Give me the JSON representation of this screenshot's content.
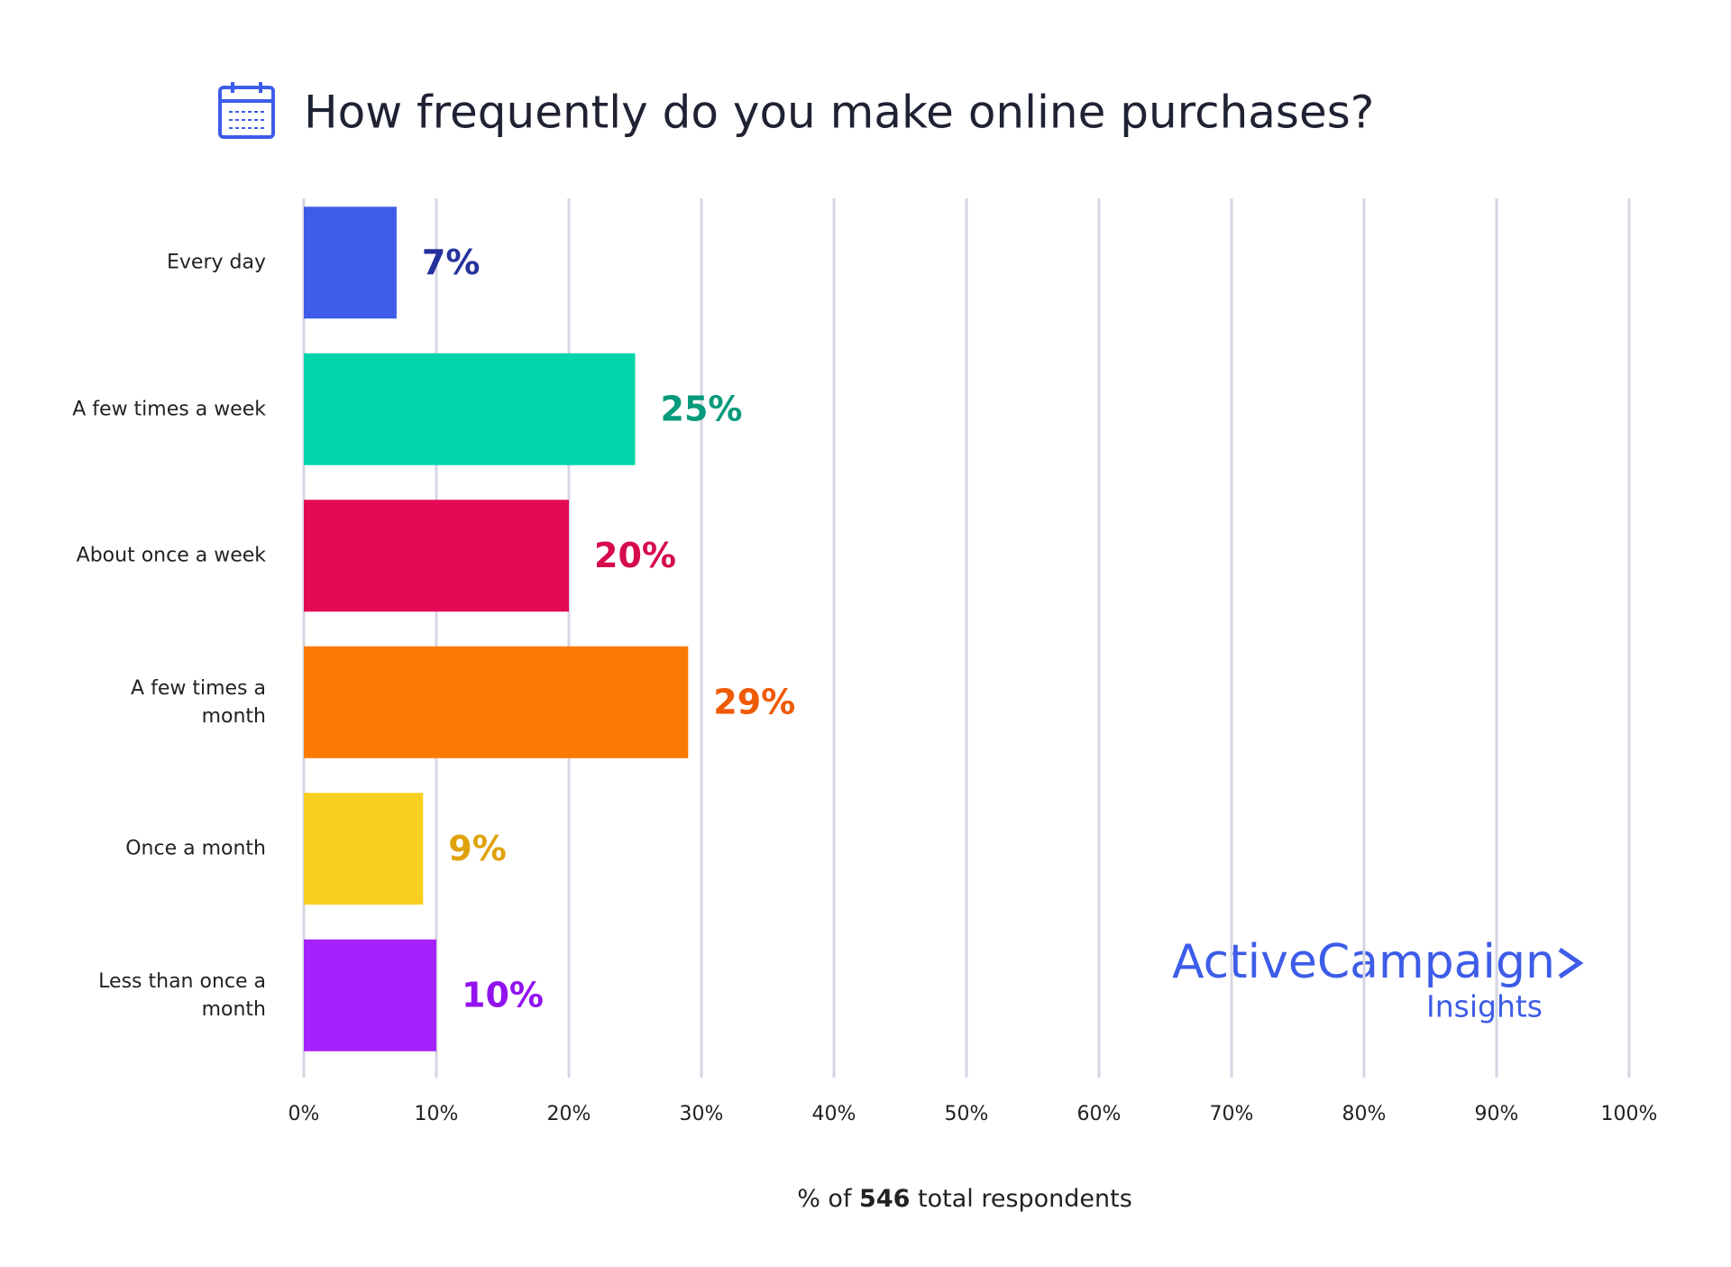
{
  "chart_data": {
    "type": "bar",
    "orientation": "horizontal",
    "title": "How frequently do you make online purchases?",
    "categories": [
      "Every day",
      "A few times a week",
      "About once a week",
      "A few times a\nmonth",
      "Once a month",
      "Less than once a\nmonth"
    ],
    "values": [
      7,
      25,
      20,
      29,
      9,
      10
    ],
    "value_labels": [
      "7%",
      "25%",
      "20%",
      "29%",
      "9%",
      "10%"
    ],
    "colors": [
      "#3d5ce8",
      "#00d4ab",
      "#e50a55",
      "#fa7a05",
      "#f8cf21",
      "#a422fc"
    ],
    "label_colors": [
      "#25329c",
      "#079a7c",
      "#d60b4b",
      "#ef5a04",
      "#e0a20c",
      "#9313ef"
    ],
    "xlim": [
      0,
      100
    ],
    "xticks": [
      {
        "value": 0,
        "label": "0%"
      },
      {
        "value": 10,
        "label": "10%"
      },
      {
        "value": 20,
        "label": "20%"
      },
      {
        "value": 30,
        "label": "30%"
      },
      {
        "value": 40,
        "label": "40%"
      },
      {
        "value": 50,
        "label": "50%"
      },
      {
        "value": 60,
        "label": "60%"
      },
      {
        "value": 70,
        "label": "70%"
      },
      {
        "value": 80,
        "label": "80%"
      },
      {
        "value": 90,
        "label": "90%"
      },
      {
        "value": 100,
        "label": "100%"
      }
    ],
    "grid": true,
    "x_label": [
      "% of ",
      "546",
      " total respondents"
    ],
    "logo": {
      "brand": "ActiveCampaign",
      "sub": "Insights"
    }
  }
}
